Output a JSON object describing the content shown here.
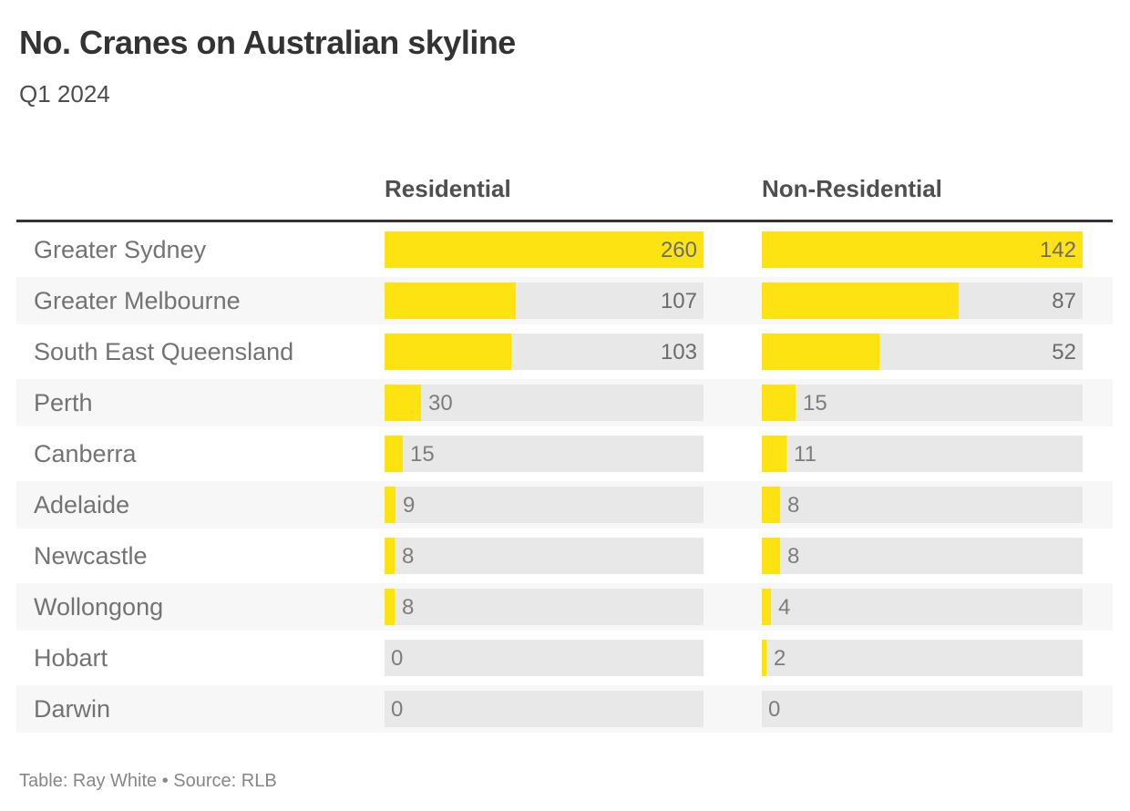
{
  "title": "No. Cranes on Australian skyline",
  "subtitle": "Q1 2024",
  "columns": {
    "residential": "Residential",
    "non_residential": "Non-Residential"
  },
  "footer": {
    "text": "Table: Ray White • Source: RLB"
  },
  "colors": {
    "bar_fill": "#fde312",
    "bar_track": "#e8e8e8",
    "row_alt_band": "#f7f7f7",
    "header_rule": "#333333",
    "title_text": "#333333",
    "label_text": "#737373",
    "value_text": "#6e6e6e",
    "footer_text": "#878787"
  },
  "chart_data": {
    "type": "bar",
    "orientation": "horizontal",
    "title": "No. Cranes on Australian skyline",
    "subtitle": "Q1 2024",
    "categories": [
      "Greater Sydney",
      "Greater Melbourne",
      "South East Queensland",
      "Perth",
      "Canberra",
      "Adelaide",
      "Newcastle",
      "Wollongong",
      "Hobart",
      "Darwin"
    ],
    "series": [
      {
        "name": "Residential",
        "values": [
          260,
          107,
          103,
          30,
          15,
          9,
          8,
          8,
          0,
          0
        ]
      },
      {
        "name": "Non-Residential",
        "values": [
          142,
          87,
          52,
          15,
          11,
          8,
          8,
          4,
          2,
          0
        ]
      }
    ],
    "column_max": [
      260,
      142
    ],
    "scaling": "each column scaled to its own maximum",
    "value_labels": "at end of bar; inside bar when wide, outside when narrow",
    "grid": false,
    "legend_position": "column headers above table",
    "source_note": "Table: Ray White • Source: RLB"
  }
}
